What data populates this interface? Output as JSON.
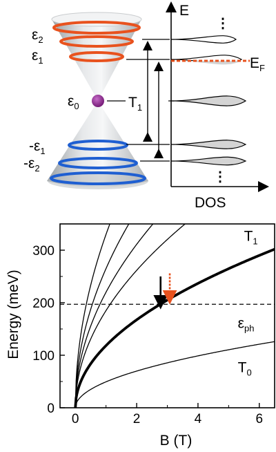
{
  "diagram": {
    "cone_labels": {
      "eps2_top": {
        "base": "ε",
        "sub": "2"
      },
      "eps1_top": {
        "base": "ε",
        "sub": "1"
      },
      "eps0": {
        "base": "ε",
        "sub": "0"
      },
      "t1": {
        "base": "T",
        "sub": "1"
      },
      "eps1_bottom": {
        "base": "-ε",
        "sub": "1"
      },
      "eps2_bottom": {
        "base": "-ε",
        "sub": "2"
      }
    },
    "dos_axis": {
      "energy_label": "E",
      "dos_label": "DOS",
      "fermi_label": {
        "base": "E",
        "sub": "F"
      },
      "ellipsis": "⋮"
    },
    "colors": {
      "upper_rings": "#e8521e",
      "lower_rings": "#1f5fd1",
      "dirac_point": "#8a1e8c",
      "fermi_line": "#e8521e",
      "dos_fill": "#d4d4d4",
      "cone": "#cfd3d6"
    }
  },
  "chart_data": {
    "type": "line",
    "xlabel": "B (T)",
    "ylabel": "Energy (meV)",
    "xlim": [
      -0.5,
      6.5
    ],
    "ylim": [
      0,
      350
    ],
    "xticks": [
      0,
      2,
      4,
      6
    ],
    "yticks": [
      0,
      100,
      200,
      300
    ],
    "grid": false,
    "series": [
      {
        "name": "T0",
        "label": {
          "base": "T",
          "sub": "0"
        },
        "label_at": [
          5.3,
          68
        ],
        "coefficient_mev_per_sqrt_t": 49.4,
        "width": 1.3,
        "points": [
          [
            0,
            0
          ],
          [
            1,
            49.4
          ],
          [
            2,
            69.9
          ],
          [
            3,
            85.6
          ],
          [
            4,
            98.8
          ],
          [
            5,
            110.5
          ],
          [
            6,
            121
          ],
          [
            6.5,
            126
          ]
        ]
      },
      {
        "name": "T1",
        "label": {
          "base": "T",
          "sub": "1"
        },
        "label_at": [
          5.5,
          318
        ],
        "coefficient_mev_per_sqrt_t": 118.4,
        "width": 3.8,
        "points": [
          [
            0,
            0
          ],
          [
            1,
            118.4
          ],
          [
            2,
            167.5
          ],
          [
            2.78,
            197
          ],
          [
            4,
            236.8
          ],
          [
            5,
            264.8
          ],
          [
            6,
            290
          ],
          [
            6.5,
            301.9
          ]
        ]
      },
      {
        "name": "",
        "coefficient_mev_per_sqrt_t": 185,
        "width": 1.3,
        "points": [
          [
            0,
            0
          ],
          [
            1,
            185
          ],
          [
            2,
            261.6
          ],
          [
            3,
            320.4
          ],
          [
            3.58,
            350
          ]
        ]
      },
      {
        "name": "",
        "coefficient_mev_per_sqrt_t": 220,
        "width": 1.3,
        "points": [
          [
            0,
            0
          ],
          [
            1,
            220
          ],
          [
            2,
            311.1
          ],
          [
            2.53,
            350
          ]
        ]
      },
      {
        "name": "",
        "coefficient_mev_per_sqrt_t": 265,
        "width": 1.3,
        "points": [
          [
            0,
            0
          ],
          [
            1,
            265
          ],
          [
            1.74,
            350
          ]
        ]
      },
      {
        "name": "",
        "coefficient_mev_per_sqrt_t": 330,
        "width": 1.3,
        "points": [
          [
            0,
            0
          ],
          [
            1,
            330
          ],
          [
            1.12,
            350
          ]
        ]
      }
    ],
    "hline": {
      "label": {
        "base": "ε",
        "sub": "ph"
      },
      "y": 197,
      "label_at": [
        5.3,
        152
      ],
      "style": "dashed"
    },
    "arrows": [
      {
        "name": "black-arrow",
        "x": 2.78,
        "y_from": 250,
        "y_to": 201,
        "color": "#000000",
        "style": "solid"
      },
      {
        "name": "orange-arrow",
        "x": 3.08,
        "y_from": 256,
        "y_to": 210,
        "color": "#e8521e",
        "style": "dotted"
      }
    ]
  }
}
